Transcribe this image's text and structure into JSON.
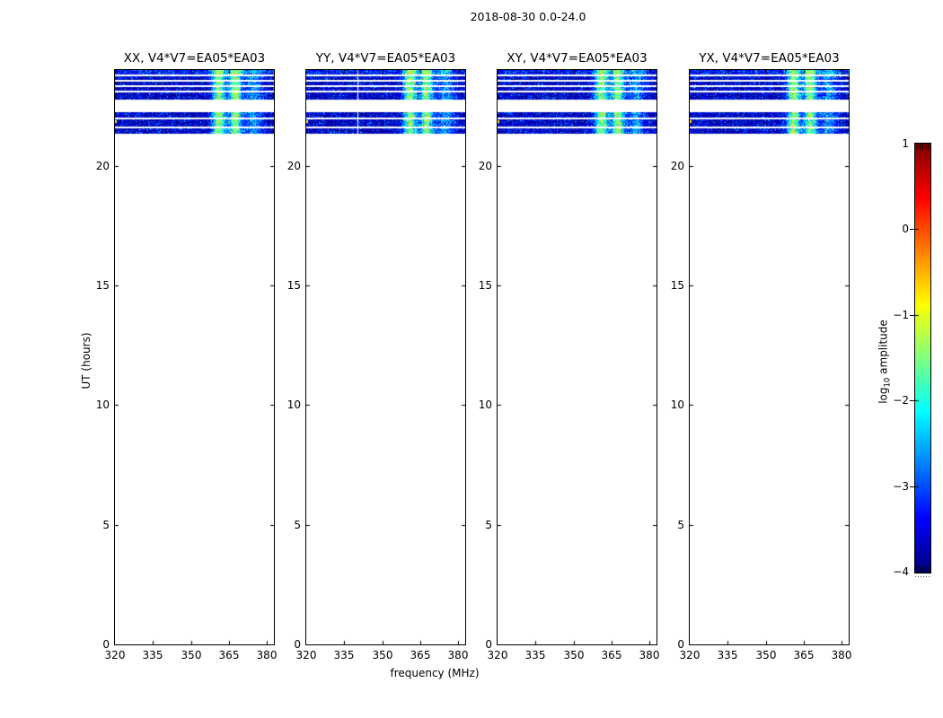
{
  "figure": {
    "title": "2018-08-30 0.0-24.0"
  },
  "chart_data": {
    "type": "heatmap",
    "title": "2018-08-30 0.0-24.0",
    "xlabel": "frequency (MHz)",
    "ylabel": "UT (hours)",
    "xlim": [
      320,
      382.7
    ],
    "ylim": [
      0,
      24
    ],
    "xticks": [
      320,
      335,
      350,
      365,
      380
    ],
    "yticks": [
      20,
      15,
      10,
      5,
      0
    ],
    "grid": false,
    "colormap": "jet",
    "panels": [
      {
        "title": "XX, V4*V7=EA05*EA03",
        "seed": 101,
        "dropout_line_mhz": null
      },
      {
        "title": "YY, V4*V7=EA05*EA03",
        "seed": 202,
        "dropout_line_mhz": 340.2
      },
      {
        "title": "XY, V4*V7=EA05*EA03",
        "seed": 303,
        "dropout_line_mhz": null
      },
      {
        "title": "YX, V4*V7=EA05*EA03",
        "seed": 404,
        "dropout_line_mhz": null
      }
    ],
    "data_description": {
      "occupied_hours": [
        21.3,
        24.0
      ],
      "strips_hours": [
        [
          24.0,
          23.81
        ],
        [
          23.74,
          23.59
        ],
        [
          23.51,
          23.36
        ],
        [
          23.29,
          23.14
        ],
        [
          23.06,
          22.76
        ],
        [
          22.24,
          22.01
        ],
        [
          21.94,
          21.64
        ],
        [
          21.58,
          21.32
        ]
      ],
      "background_level_log10": [
        -4.0,
        -3.0
      ],
      "rfi_bands_mhz": [
        {
          "center": 360.8,
          "width": 2.6,
          "peak_level": -1.0,
          "strength": "strong"
        },
        {
          "center": 367.3,
          "width": 2.4,
          "peak_level": -1.1,
          "strength": "strong"
        },
        {
          "center": 374.5,
          "width": 3.5,
          "peak_level": -2.2,
          "strength": "mild"
        }
      ],
      "edge_mark": {
        "mhz": 320.5,
        "hour": 21.9,
        "level": -0.8
      }
    },
    "colorbar": {
      "label_prefix": "log",
      "label_sub": "10",
      "label_suffix": " amplitude",
      "vmin": -4,
      "vmax": 1,
      "ticks": [
        1,
        0,
        -1,
        -2,
        -3,
        -4
      ],
      "tick_labels": [
        "1",
        "0",
        "−1",
        "−2",
        "−3",
        "−4"
      ],
      "top_color": "#800000",
      "bottom_color": "#000080"
    }
  }
}
